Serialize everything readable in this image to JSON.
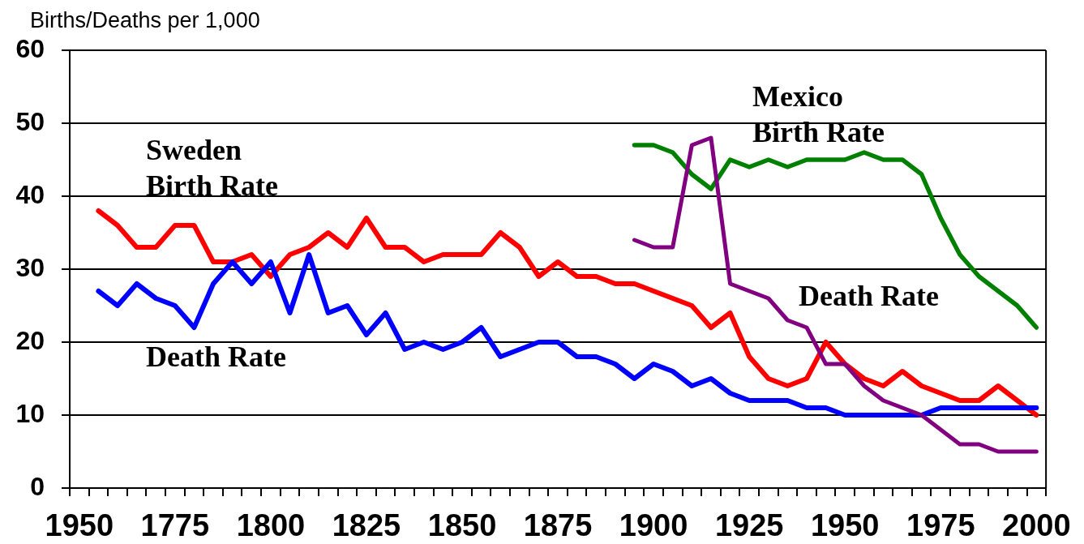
{
  "chart_data": {
    "type": "line",
    "ylabel": "Births/Deaths per 1,000",
    "categories": [
      "1950",
      null,
      null,
      null,
      null,
      "1775",
      null,
      null,
      null,
      null,
      "1800",
      null,
      null,
      null,
      null,
      "1825",
      null,
      null,
      null,
      null,
      "1850",
      null,
      null,
      null,
      null,
      "1875",
      null,
      null,
      null,
      null,
      "1900",
      null,
      null,
      null,
      null,
      "1925",
      null,
      null,
      null,
      null,
      "1950",
      null,
      null,
      null,
      null,
      "1975",
      null,
      null,
      null,
      null,
      "2000"
    ],
    "series": [
      {
        "name": "Sweden Birth Rate",
        "color": "#ff0000",
        "values": [
          null,
          38,
          36,
          33,
          33,
          36,
          36,
          31,
          31,
          32,
          29,
          32,
          33,
          35,
          33,
          37,
          33,
          33,
          31,
          32,
          32,
          32,
          35,
          33,
          29,
          31,
          29,
          29,
          28,
          28,
          27,
          26,
          25,
          22,
          24,
          18,
          15,
          14,
          15,
          20,
          17,
          15,
          14,
          16,
          14,
          13,
          12,
          12,
          14,
          12,
          10
        ]
      },
      {
        "name": "Death Rate",
        "color": "#0000ff",
        "values": [
          null,
          27,
          25,
          28,
          26,
          25,
          22,
          28,
          31,
          28,
          31,
          24,
          32,
          24,
          25,
          21,
          24,
          19,
          20,
          19,
          20,
          22,
          18,
          19,
          20,
          20,
          18,
          18,
          17,
          15,
          17,
          16,
          14,
          15,
          13,
          12,
          12,
          12,
          11,
          11,
          10,
          10,
          10,
          10,
          10,
          11,
          11,
          11,
          11,
          11,
          11
        ]
      },
      {
        "name": "Mexico Birth Rate",
        "color": "#008000",
        "values": [
          null,
          null,
          null,
          null,
          null,
          null,
          null,
          null,
          null,
          null,
          null,
          null,
          null,
          null,
          null,
          null,
          null,
          null,
          null,
          null,
          null,
          null,
          null,
          null,
          null,
          null,
          null,
          null,
          null,
          47,
          47,
          46,
          43,
          41,
          45,
          44,
          45,
          44,
          45,
          45,
          45,
          46,
          45,
          45,
          43,
          37,
          32,
          29,
          27,
          25,
          22
        ]
      },
      {
        "name": "Death Rate",
        "color": "#800080",
        "values": [
          null,
          null,
          null,
          null,
          null,
          null,
          null,
          null,
          null,
          null,
          null,
          null,
          null,
          null,
          null,
          null,
          null,
          null,
          null,
          null,
          null,
          null,
          null,
          null,
          null,
          null,
          null,
          null,
          null,
          34,
          33,
          33,
          47,
          48,
          28,
          27,
          26,
          23,
          22,
          17,
          17,
          14,
          12,
          11,
          10,
          8,
          6,
          6,
          5,
          5,
          5
        ]
      }
    ],
    "ylim": [
      0,
      60
    ],
    "yticks": [
      0,
      10,
      20,
      30,
      40,
      50,
      60
    ],
    "grid": "y",
    "marker": "none"
  }
}
